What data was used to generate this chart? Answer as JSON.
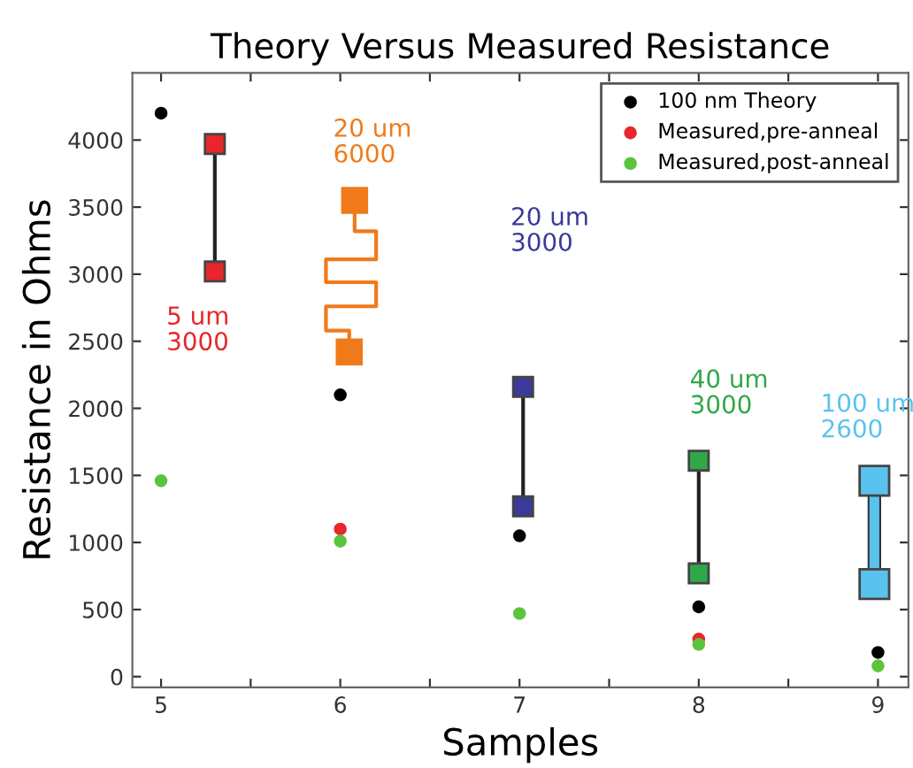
{
  "chart_data": {
    "type": "scatter",
    "title": "Theory Versus Measured Resistance",
    "xlabel": "Samples",
    "ylabel": "Resistance in Ohms",
    "x": [
      5,
      6,
      7,
      8,
      9
    ],
    "series": [
      {
        "name": "100 nm Theory",
        "color": "#000000",
        "values": [
          4200,
          2100,
          1050,
          520,
          180
        ]
      },
      {
        "name": "Measured,pre-anneal",
        "color": "#e8262b",
        "values": [
          null,
          1100,
          null,
          280,
          null
        ]
      },
      {
        "name": "Measured,post-anneal",
        "color": "#5cc43c",
        "values": [
          1460,
          1010,
          470,
          240,
          80
        ]
      }
    ],
    "xlim": [
      4.84,
      9.17
    ],
    "ylim": [
      -80,
      4500
    ],
    "xticks": [
      5,
      {
        "value": 5.5,
        "label": null
      },
      6,
      {
        "value": 6.5,
        "label": null
      },
      7,
      {
        "value": 7.5,
        "label": null
      },
      8,
      {
        "value": 8.5,
        "label": null
      },
      9
    ],
    "yticks": [
      0,
      500,
      1000,
      1500,
      2000,
      2500,
      3000,
      3500,
      4000
    ],
    "annotations": [
      "5 um\n3000",
      "20 um\n6000",
      "20 um\n3000",
      "40 um\n3000",
      "100 um\n2600"
    ],
    "legend": "top right",
    "marker": "circle",
    "grid": false
  }
}
